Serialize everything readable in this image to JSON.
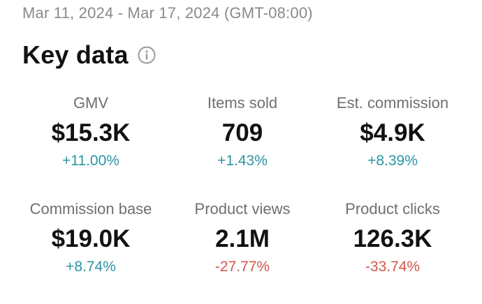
{
  "date_range": "Mar 11, 2024 - Mar 17, 2024 (GMT-08:00)",
  "title": "Key data",
  "info_icon": "info-icon",
  "colors": {
    "positive": "#2a95a3",
    "negative": "#d0584a",
    "label": "#6f6f6f",
    "date": "#8a8a8a"
  },
  "metrics": [
    {
      "label": "GMV",
      "value": "$15.3K",
      "change": "+11.00%",
      "trend": "up"
    },
    {
      "label": "Items sold",
      "value": "709",
      "change": "+1.43%",
      "trend": "up"
    },
    {
      "label": "Est. commission",
      "value": "$4.9K",
      "change": "+8.39%",
      "trend": "up"
    },
    {
      "label": "Commission base",
      "value": "$19.0K",
      "change": "+8.74%",
      "trend": "up"
    },
    {
      "label": "Product views",
      "value": "2.1M",
      "change": "-27.77%",
      "trend": "down"
    },
    {
      "label": "Product clicks",
      "value": "126.3K",
      "change": "-33.74%",
      "trend": "down"
    }
  ]
}
